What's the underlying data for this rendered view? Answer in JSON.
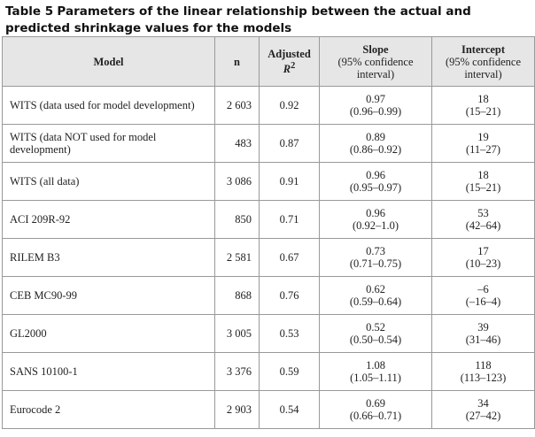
{
  "caption": {
    "label": "Table 5",
    "text": "Parameters of the linear relationship between the actual and predicted shrinkage values for the models"
  },
  "table": {
    "header": {
      "model": "Model",
      "n": "n",
      "r2": {
        "text": "Adjusted",
        "var": "R",
        "sup": "2"
      },
      "slope": {
        "text": "Slope",
        "sub": "(95% confidence interval)"
      },
      "intercept": {
        "text": "Intercept",
        "sub": "(95% confidence interval)"
      }
    },
    "rows": [
      [
        "WITS (data used for model development)",
        "2 603",
        "0.92",
        "0.97",
        "(0.96–0.99)",
        "18",
        "(15–21)"
      ],
      [
        "WITS (data NOT used for model development)",
        "483",
        "0.87",
        "0.89",
        "(0.86–0.92)",
        "19",
        "(11–27)"
      ],
      [
        "WITS (all data)",
        "3 086",
        "0.91",
        "0.96",
        "(0.95–0.97)",
        "18",
        "(15–21)"
      ],
      [
        "ACI 209R-92",
        "850",
        "0.71",
        "0.96",
        "(0.92–1.0)",
        "53",
        "(42–64)"
      ],
      [
        "RILEM B3",
        "2 581",
        "0.67",
        "0.73",
        "(0.71–0.75)",
        "17",
        "(10–23)"
      ],
      [
        "CEB MC90-99",
        "868",
        "0.76",
        "0.62",
        "(0.59–0.64)",
        "–6",
        "(–16–4)"
      ],
      [
        "GL2000",
        "3 005",
        "0.53",
        "0.52",
        "(0.50–0.54)",
        "39",
        "(31–46)"
      ],
      [
        "SANS 10100-1",
        "3 376",
        "0.59",
        "1.08",
        "(1.05–1.11)",
        "118",
        "(113–123)"
      ],
      [
        "Eurocode 2",
        "2 903",
        "0.54",
        "0.69",
        "(0.66–0.71)",
        "34",
        "(27–42)"
      ]
    ]
  }
}
